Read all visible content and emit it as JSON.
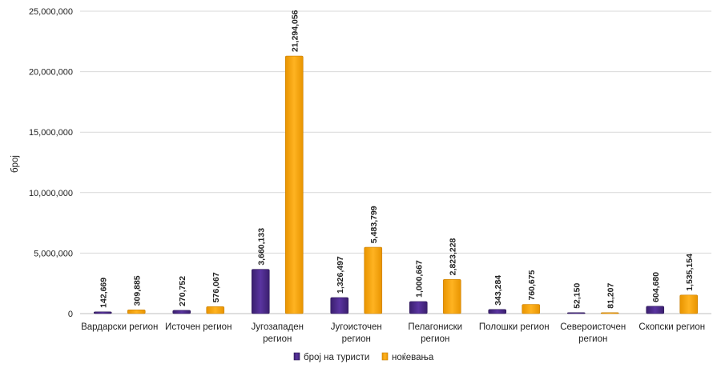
{
  "chart_data": {
    "type": "bar",
    "ylabel": "број",
    "xlabel": "",
    "ylim": [
      0,
      25000000
    ],
    "yticks": [
      "0",
      "5,000,000",
      "10,000,000",
      "15,000,000",
      "20,000,000",
      "25,000,000"
    ],
    "ytick_values": [
      0,
      5000000,
      10000000,
      15000000,
      20000000,
      25000000
    ],
    "grid": true,
    "legend_position": "bottom",
    "categories": [
      [
        "Вардарски регион"
      ],
      [
        "Источен регион"
      ],
      [
        "Југозападен",
        "регион"
      ],
      [
        "Југоисточен",
        "регион"
      ],
      [
        "Пелагониски",
        "регион"
      ],
      [
        "Полошки регион"
      ],
      [
        "Североисточен",
        "регион"
      ],
      [
        "Скопски регион"
      ]
    ],
    "series": [
      {
        "name": "број на туристи",
        "color": "#4b2a87",
        "values": [
          142669,
          270752,
          3660133,
          1326497,
          1000667,
          343284,
          52150,
          604680
        ],
        "labels": [
          "142,669",
          "270,752",
          "3,660,133",
          "1,326,497",
          "1,000,667",
          "343,284",
          "52,150",
          "604,680"
        ]
      },
      {
        "name": "ноќевања",
        "color": "#f5a202",
        "values": [
          309885,
          576067,
          21294056,
          5483799,
          2823228,
          760675,
          81207,
          1535154
        ],
        "labels": [
          "309,885",
          "576,067",
          "21,294,056",
          "5,483,799",
          "2,823,228",
          "760,675",
          "81,207",
          "1,535,154"
        ]
      }
    ]
  }
}
